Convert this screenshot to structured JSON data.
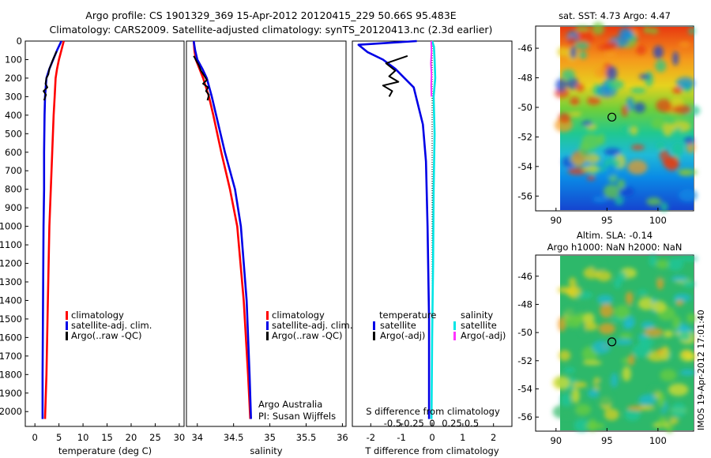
{
  "title": {
    "line1": "Argo profile: CS 1901329_369 15-Apr-2012 20120415_229 50.66S 95.483E",
    "line2": "Climatology: CARS2009. Satellite-adjusted climatology: synTS_20120413.nc (2.3d earlier)"
  },
  "side_stamp": "IMOS 19-Apr-2012 17:01:40",
  "colors": {
    "climatology": "#ff0000",
    "satellite": "#0000e6",
    "argo": "#000000",
    "sal_satellite": "#00e5e5",
    "sal_argo": "#ff33ff"
  },
  "chart_data": [
    {
      "type": "line",
      "panel": "temperature",
      "xlabel": "temperature (deg C)",
      "ylabel": "",
      "xlim": [
        -2,
        31
      ],
      "ylim": [
        2080,
        0
      ],
      "xticks": [
        "0",
        "5",
        "10",
        "15",
        "20",
        "25",
        "30"
      ],
      "yticks": [
        "0",
        "100",
        "200",
        "300",
        "400",
        "500",
        "600",
        "700",
        "800",
        "900",
        "1000",
        "1100",
        "1200",
        "1300",
        "1400",
        "1500",
        "1600",
        "1700",
        "1800",
        "1900",
        "2000"
      ],
      "legend": [
        "climatology",
        "satellite-adj. clim.",
        "Argo(..raw -QC)"
      ],
      "legend_position": "lower-center",
      "series": [
        {
          "name": "climatology",
          "x": [
            6.0,
            5.5,
            5.0,
            4.6,
            4.3,
            4.1,
            3.9,
            3.6,
            3.3,
            3.0,
            2.7,
            2.4,
            2.1
          ],
          "y": [
            0,
            50,
            100,
            150,
            200,
            300,
            400,
            600,
            800,
            1000,
            1400,
            1800,
            2040
          ]
        },
        {
          "name": "satellite-adj. clim.",
          "x": [
            5.5,
            4.6,
            3.8,
            3.0,
            2.4,
            2.1,
            2.0,
            1.9,
            1.9,
            1.8,
            1.7,
            1.6,
            1.6
          ],
          "y": [
            0,
            50,
            100,
            150,
            200,
            300,
            400,
            600,
            800,
            1000,
            1400,
            1800,
            2040
          ]
        },
        {
          "name": "Argo(..raw -QC)",
          "x": [
            4.5,
            3.6,
            3.0,
            2.8,
            2.4,
            2.2,
            2.6,
            1.8,
            2.3,
            1.9
          ],
          "y": [
            55,
            110,
            150,
            180,
            200,
            230,
            250,
            270,
            290,
            320
          ]
        }
      ]
    },
    {
      "type": "line",
      "panel": "salinity",
      "xlabel": "salinity",
      "ylabel": "",
      "xlim": [
        33.85,
        36.05
      ],
      "ylim": [
        2080,
        0
      ],
      "xticks": [
        "34",
        "34.5",
        "35",
        "35.5",
        "36"
      ],
      "legend": [
        "climatology",
        "satellite-adj. clim.",
        "Argo(..raw -QC)"
      ],
      "legend_position": "lower-right",
      "annotations": [
        "Argo Australia",
        "PI: Susan Wijffels"
      ],
      "series": [
        {
          "name": "climatology",
          "x": [
            33.95,
            33.96,
            33.98,
            34.03,
            34.08,
            34.16,
            34.22,
            34.33,
            34.45,
            34.55,
            34.64,
            34.7,
            34.73
          ],
          "y": [
            0,
            50,
            100,
            150,
            200,
            300,
            400,
            600,
            800,
            1000,
            1400,
            1800,
            2040
          ]
        },
        {
          "name": "satellite-adj. clim.",
          "x": [
            33.95,
            33.97,
            34.0,
            34.07,
            34.13,
            34.2,
            34.26,
            34.38,
            34.52,
            34.6,
            34.68,
            34.72,
            34.74
          ],
          "y": [
            0,
            50,
            100,
            150,
            200,
            300,
            400,
            600,
            800,
            1000,
            1400,
            1800,
            2040
          ]
        },
        {
          "name": "Argo(..raw -QC)",
          "x": [
            33.95,
            34.02,
            34.05,
            34.1,
            34.13,
            34.08,
            34.15,
            34.12,
            34.16,
            34.14
          ],
          "y": [
            80,
            130,
            160,
            190,
            210,
            230,
            250,
            270,
            290,
            320
          ]
        }
      ]
    },
    {
      "type": "line",
      "panel": "difference",
      "xlabel": "T difference from climatology",
      "top_label": "S difference from climatology",
      "xlim": [
        -2.6,
        2.6
      ],
      "ylim": [
        2080,
        0
      ],
      "xticks_bottom": [
        "-2",
        "-1",
        "0",
        "1",
        "2"
      ],
      "xticks_top": [
        "-0.5",
        "-0.25",
        "0",
        "0.25",
        "0.5"
      ],
      "legend_headers": [
        "temperature",
        "salinity"
      ],
      "legend": [
        "satellite",
        "Argo(-adj)",
        "satellite",
        "Argo(-adj)"
      ],
      "legend_position": "lower-center",
      "series": [
        {
          "name": "temperature satellite",
          "x": [
            -0.5,
            -2.4,
            -2.1,
            -1.6,
            -1.2,
            -0.6,
            -0.3,
            -0.2,
            -0.15,
            -0.1,
            -0.1
          ],
          "y": [
            0,
            20,
            60,
            100,
            150,
            250,
            450,
            650,
            1000,
            1500,
            2040
          ]
        },
        {
          "name": "temperature Argo(-adj)",
          "x": [
            -0.8,
            -1.5,
            -1.2,
            -1.4,
            -1.1,
            -1.6,
            -1.3,
            -1.4
          ],
          "y": [
            80,
            120,
            160,
            190,
            220,
            240,
            270,
            300
          ]
        },
        {
          "name": "salinity satellite",
          "x": [
            0.0,
            0.06,
            0.08,
            0.1,
            0.05,
            0.08,
            0.05,
            0.03,
            0.0,
            -0.02
          ],
          "y": [
            0,
            30,
            100,
            200,
            300,
            500,
            800,
            1200,
            1600,
            2040
          ]
        },
        {
          "name": "salinity Argo(-adj)",
          "x": [
            -0.03,
            -0.02,
            -0.04,
            -0.02,
            -0.03,
            -0.02
          ],
          "y": [
            0,
            60,
            120,
            180,
            240,
            300
          ]
        }
      ]
    },
    {
      "type": "heatmap",
      "panel": "sst-map",
      "title": "sat. SST: 4.73 Argo: 4.47",
      "xticks": [
        "90",
        "95",
        "100"
      ],
      "yticks": [
        "-46",
        "-48",
        "-50",
        "-52",
        "-54",
        "-56"
      ],
      "xlim": [
        88,
        103.5
      ],
      "ylim": [
        -57,
        -44.5
      ],
      "marker": {
        "lon": 95.483,
        "lat": -50.66
      }
    },
    {
      "type": "heatmap",
      "panel": "sla-map",
      "title": "Altim. SLA: -0.14",
      "subtitle": "Argo h1000: NaN h2000: NaN",
      "xticks": [
        "90",
        "95",
        "100"
      ],
      "yticks": [
        "-46",
        "-48",
        "-50",
        "-52",
        "-54",
        "-56"
      ],
      "xlim": [
        88,
        103.5
      ],
      "ylim": [
        -57,
        -44.5
      ],
      "marker": {
        "lon": 95.483,
        "lat": -50.66
      }
    }
  ]
}
